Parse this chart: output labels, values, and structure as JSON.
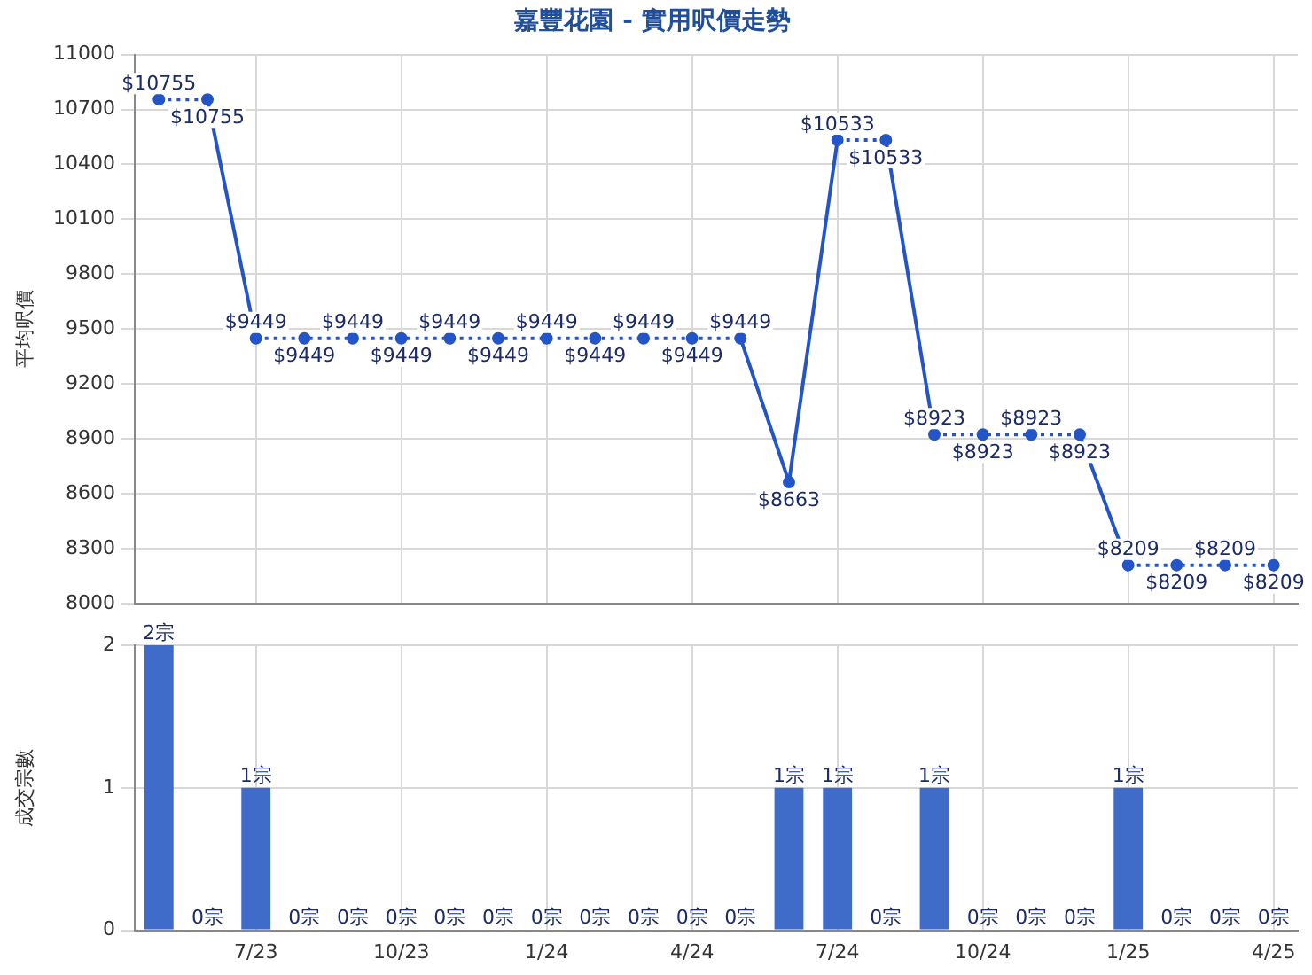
{
  "chart_data": [
    {
      "type": "line",
      "title": "嘉豐花園 - 實用呎價走勢",
      "ylabel": "平均呎價",
      "categories": [
        null,
        null,
        null,
        null,
        null,
        null,
        null,
        null,
        null,
        null,
        null,
        null,
        null,
        null,
        null,
        null,
        null,
        null,
        null,
        null,
        null,
        null,
        null,
        null
      ],
      "series": [
        {
          "color": "#2455c8",
          "values": [
            10755,
            10755,
            9449,
            9449,
            9449,
            9449,
            9449,
            9449,
            9449,
            9449,
            9449,
            9449,
            9449,
            8663,
            10533,
            10533,
            8923,
            8923,
            8923,
            8923,
            8209,
            8209,
            8209,
            8209
          ],
          "value_labels": [
            "$10755",
            "$10755",
            "$9449",
            "$9449",
            "$9449",
            "$9449",
            "$9449",
            "$9449",
            "$9449",
            "$9449",
            "$9449",
            "$9449",
            "$9449",
            "$8663",
            "$10533",
            "$10533",
            "$8923",
            "$8923",
            "$8923",
            "$8923",
            "$8209",
            "$8209",
            "$8209",
            "$8209"
          ]
        }
      ],
      "ylim": [
        8000,
        11000
      ],
      "yticks": [
        8000,
        8300,
        8600,
        8900,
        9200,
        9500,
        9800,
        10100,
        10400,
        10700,
        11000
      ],
      "grid": true,
      "legend": false,
      "marker": "circle",
      "tick_labels": "y"
    },
    {
      "type": "bar",
      "ylabel": "成交宗數",
      "categories": [
        null,
        null,
        "7/23",
        null,
        null,
        "10/23",
        null,
        null,
        "1/24",
        null,
        null,
        "4/24",
        null,
        null,
        "7/24",
        null,
        null,
        "10/24",
        null,
        null,
        "1/25",
        null,
        null,
        "4/25"
      ],
      "series": [
        {
          "color": "#3f6cc8",
          "values": [
            2,
            0,
            1,
            0,
            0,
            0,
            0,
            0,
            0,
            0,
            0,
            0,
            0,
            1,
            1,
            0,
            1,
            0,
            0,
            0,
            1,
            0,
            0,
            0
          ],
          "value_labels": [
            "2宗",
            "0宗",
            "1宗",
            "0宗",
            "0宗",
            "0宗",
            "0宗",
            "0宗",
            "0宗",
            "0宗",
            "0宗",
            "0宗",
            "0宗",
            "1宗",
            "1宗",
            "0宗",
            "1宗",
            "0宗",
            "0宗",
            "0宗",
            "1宗",
            "0宗",
            "0宗",
            "0宗"
          ]
        }
      ],
      "ylim": [
        0,
        2
      ],
      "yticks": [
        0,
        1,
        2
      ],
      "grid": true,
      "legend": false
    }
  ]
}
